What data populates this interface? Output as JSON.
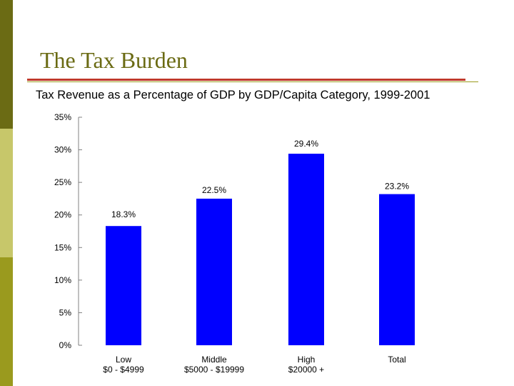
{
  "slide": {
    "title": "The Tax Burden",
    "accent_colors": [
      "#6b6b14",
      "#c7c76a",
      "#9a9a1e"
    ],
    "rule_color": "#c0392b"
  },
  "chart_data": {
    "type": "bar",
    "title": "Tax Revenue as a Percentage of GDP by GDP/Capita Category, 1999-2001",
    "xlabel": "",
    "ylabel": "",
    "categories": [
      [
        "Low",
        "$0 - $4999"
      ],
      [
        "Middle",
        "$5000 - $19999"
      ],
      [
        "High",
        "$20000 +"
      ],
      [
        "Total"
      ]
    ],
    "values": [
      18.3,
      22.5,
      29.4,
      23.2
    ],
    "value_labels": [
      "18.3%",
      "22.5%",
      "29.4%",
      "23.2%"
    ],
    "ylim": [
      0,
      35
    ],
    "yticks": [
      0,
      5,
      10,
      15,
      20,
      25,
      30,
      35
    ],
    "ytick_labels": [
      "0%",
      "5%",
      "10%",
      "15%",
      "20%",
      "25%",
      "30%",
      "35%"
    ],
    "bar_color": "#0000ff",
    "grid": false,
    "legend": "none"
  }
}
